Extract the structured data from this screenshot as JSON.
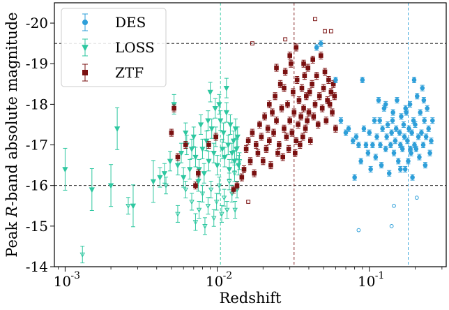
{
  "chart_data": {
    "type": "scatter",
    "xlabel": "Redshift",
    "ylabel": "Peak R-band absolute magnitude",
    "xscale": "log",
    "xlim": [
      0.00085,
      0.32
    ],
    "ylim": [
      -14.0,
      -20.5
    ],
    "y_inverted": true,
    "x_ticks": [
      0.001,
      0.01,
      0.1
    ],
    "x_tick_labels": [
      "10",
      "10",
      "10"
    ],
    "x_tick_exponents": [
      "-3",
      "-2",
      "-1"
    ],
    "y_ticks": [
      -20,
      -19,
      -18,
      -17,
      -16,
      -15,
      -14
    ],
    "y_tick_labels": [
      "-20",
      "-19",
      "-18",
      "-17",
      "-16",
      "-15",
      "-14"
    ],
    "hlines": [
      -19.5,
      -16.0
    ],
    "vlines": [
      {
        "x": 0.0105,
        "series": "LOSS"
      },
      {
        "x": 0.032,
        "series": "ZTF"
      },
      {
        "x": 0.18,
        "series": "DES"
      }
    ],
    "legend_placement": "top-left",
    "series": [
      {
        "name": "DES",
        "color": "#2e9fd9",
        "marker": "circle",
        "points": [
          [
            0.045,
            -19.4
          ],
          [
            0.048,
            -19.5
          ],
          [
            0.06,
            -18.6
          ],
          [
            0.065,
            -17.6
          ],
          [
            0.07,
            -17.3
          ],
          [
            0.073,
            -17.4
          ],
          [
            0.078,
            -17.1
          ],
          [
            0.08,
            -16.2
          ],
          [
            0.082,
            -17.2
          ],
          [
            0.085,
            -17.0
          ],
          [
            0.088,
            -16.6
          ],
          [
            0.09,
            -18.6
          ],
          [
            0.092,
            -17.4
          ],
          [
            0.095,
            -17.0
          ],
          [
            0.098,
            -16.8
          ],
          [
            0.1,
            -17.3
          ],
          [
            0.102,
            -16.4
          ],
          [
            0.105,
            -17.0
          ],
          [
            0.108,
            -17.6
          ],
          [
            0.11,
            -16.7
          ],
          [
            0.112,
            -17.2
          ],
          [
            0.115,
            -18.1
          ],
          [
            0.118,
            -17.0
          ],
          [
            0.12,
            -16.5
          ],
          [
            0.122,
            -17.4
          ],
          [
            0.125,
            -17.9
          ],
          [
            0.128,
            -16.9
          ],
          [
            0.13,
            -17.2
          ],
          [
            0.132,
            -17.5
          ],
          [
            0.135,
            -16.3
          ],
          [
            0.138,
            -17.0
          ],
          [
            0.14,
            -17.3
          ],
          [
            0.142,
            -17.6
          ],
          [
            0.145,
            -16.8
          ],
          [
            0.148,
            -17.1
          ],
          [
            0.15,
            -17.4
          ],
          [
            0.152,
            -18.1
          ],
          [
            0.155,
            -16.6
          ],
          [
            0.158,
            -17.3
          ],
          [
            0.16,
            -17.0
          ],
          [
            0.162,
            -17.7
          ],
          [
            0.165,
            -16.9
          ],
          [
            0.168,
            -17.5
          ],
          [
            0.17,
            -17.2
          ],
          [
            0.172,
            -16.4
          ],
          [
            0.175,
            -17.8
          ],
          [
            0.178,
            -17.1
          ],
          [
            0.18,
            -16.6
          ],
          [
            0.182,
            -17.4
          ],
          [
            0.185,
            -18.0
          ],
          [
            0.188,
            -16.8
          ],
          [
            0.19,
            -17.3
          ],
          [
            0.192,
            -16.2
          ],
          [
            0.195,
            -17.6
          ],
          [
            0.198,
            -17.0
          ],
          [
            0.2,
            -17.5
          ],
          [
            0.203,
            -16.9
          ],
          [
            0.206,
            -18.2
          ],
          [
            0.21,
            -17.2
          ],
          [
            0.213,
            -16.7
          ],
          [
            0.216,
            -17.8
          ],
          [
            0.22,
            -17.3
          ],
          [
            0.223,
            -18.4
          ],
          [
            0.226,
            -17.0
          ],
          [
            0.23,
            -17.6
          ],
          [
            0.233,
            -16.5
          ],
          [
            0.236,
            -17.2
          ],
          [
            0.24,
            -17.9
          ],
          [
            0.245,
            -17.4
          ],
          [
            0.25,
            -16.8
          ],
          [
            0.255,
            -17.1
          ],
          [
            0.26,
            -17.6
          ],
          [
            0.128,
            -18.0
          ],
          [
            0.143,
            -17.8
          ],
          [
            0.16,
            -16.4
          ],
          [
            0.173,
            -17.9
          ],
          [
            0.197,
            -18.6
          ],
          [
            0.228,
            -18.1
          ],
          [
            0.117,
            -17.6
          ],
          [
            0.186,
            -16.9
          ]
        ],
        "upper_limits": [
          [
            0.085,
            -14.9
          ],
          [
            0.14,
            -15.0
          ],
          [
            0.145,
            -15.5
          ],
          [
            0.205,
            -15.7
          ]
        ]
      },
      {
        "name": "LOSS",
        "color": "#2ec7a0",
        "marker": "triangle-down",
        "points": [
          [
            0.001,
            -16.4
          ],
          [
            0.0015,
            -15.9
          ],
          [
            0.002,
            -16.0
          ],
          [
            0.0022,
            -17.4
          ],
          [
            0.0028,
            -15.5
          ],
          [
            0.0038,
            -16.1
          ],
          [
            0.0042,
            -16.2
          ],
          [
            0.0045,
            -16.3
          ],
          [
            0.0049,
            -16.6
          ],
          [
            0.0052,
            -18.0
          ],
          [
            0.0055,
            -16.5
          ],
          [
            0.0058,
            -16.8
          ],
          [
            0.006,
            -16.2
          ],
          [
            0.0063,
            -17.0
          ],
          [
            0.0066,
            -16.4
          ],
          [
            0.007,
            -17.2
          ],
          [
            0.0072,
            -16.7
          ],
          [
            0.0075,
            -16.1
          ],
          [
            0.0078,
            -17.5
          ],
          [
            0.008,
            -16.9
          ],
          [
            0.0082,
            -16.3
          ],
          [
            0.0085,
            -17.1
          ],
          [
            0.0088,
            -16.6
          ],
          [
            0.009,
            -18.3
          ],
          [
            0.0092,
            -17.4
          ],
          [
            0.0095,
            -16.8
          ],
          [
            0.0098,
            -17.2
          ],
          [
            0.01,
            -16.5
          ],
          [
            0.0103,
            -18.0
          ],
          [
            0.0105,
            -17.6
          ],
          [
            0.0108,
            -16.9
          ],
          [
            0.011,
            -17.3
          ],
          [
            0.0112,
            -16.7
          ],
          [
            0.0115,
            -17.8
          ],
          [
            0.0118,
            -17.0
          ],
          [
            0.012,
            -16.4
          ],
          [
            0.0122,
            -17.5
          ],
          [
            0.0125,
            -16.8
          ],
          [
            0.0128,
            -17.1
          ],
          [
            0.013,
            -16.6
          ],
          [
            0.0132,
            -17.4
          ],
          [
            0.0134,
            -16.9
          ],
          [
            0.0136,
            -17.2
          ],
          [
            0.0138,
            -16.5
          ],
          [
            0.0115,
            -18.4
          ],
          [
            0.0097,
            -17.9
          ],
          [
            0.0087,
            -17.6
          ],
          [
            0.0076,
            -16.4
          ],
          [
            0.0068,
            -16.9
          ],
          [
            0.0062,
            -17.3
          ]
        ],
        "upper_limits": [
          [
            0.0013,
            -14.3
          ],
          [
            0.0026,
            -15.5
          ],
          [
            0.0046,
            -16.0
          ],
          [
            0.0055,
            -15.3
          ],
          [
            0.0062,
            -15.9
          ],
          [
            0.0068,
            -15.6
          ],
          [
            0.0072,
            -15.1
          ],
          [
            0.0076,
            -15.4
          ],
          [
            0.008,
            -15.8
          ],
          [
            0.0083,
            -15.0
          ],
          [
            0.0087,
            -15.5
          ],
          [
            0.0091,
            -15.9
          ],
          [
            0.0095,
            -15.2
          ],
          [
            0.0099,
            -15.6
          ],
          [
            0.0103,
            -16.0
          ],
          [
            0.0107,
            -15.3
          ],
          [
            0.0111,
            -15.7
          ],
          [
            0.0116,
            -15.4
          ],
          [
            0.012,
            -16.1
          ],
          [
            0.0125,
            -15.8
          ],
          [
            0.013,
            -16.3
          ],
          [
            0.0135,
            -15.9
          ],
          [
            0.014,
            -16.6
          ],
          [
            0.0131,
            -15.4
          ]
        ]
      },
      {
        "name": "ZTF",
        "color": "#7a1010",
        "marker": "square",
        "points": [
          [
            0.005,
            -17.3
          ],
          [
            0.0052,
            -17.9
          ],
          [
            0.0055,
            -16.7
          ],
          [
            0.0062,
            -17.0
          ],
          [
            0.0072,
            -16.0
          ],
          [
            0.0075,
            -16.3
          ],
          [
            0.0088,
            -17.0
          ],
          [
            0.0098,
            -17.2
          ],
          [
            0.0128,
            -15.9
          ],
          [
            0.0135,
            -16.0
          ],
          [
            0.0145,
            -16.2
          ],
          [
            0.015,
            -16.4
          ],
          [
            0.0155,
            -16.9
          ],
          [
            0.016,
            -17.1
          ],
          [
            0.0165,
            -16.6
          ],
          [
            0.017,
            -17.3
          ],
          [
            0.0175,
            -16.3
          ],
          [
            0.018,
            -17.0
          ],
          [
            0.0185,
            -16.8
          ],
          [
            0.019,
            -17.5
          ],
          [
            0.0195,
            -17.2
          ],
          [
            0.02,
            -16.6
          ],
          [
            0.0205,
            -17.7
          ],
          [
            0.021,
            -16.9
          ],
          [
            0.0215,
            -17.4
          ],
          [
            0.022,
            -17.1
          ],
          [
            0.0225,
            -16.5
          ],
          [
            0.023,
            -17.8
          ],
          [
            0.0235,
            -17.3
          ],
          [
            0.024,
            -18.2
          ],
          [
            0.0245,
            -17.6
          ],
          [
            0.025,
            -16.8
          ],
          [
            0.0255,
            -17.0
          ],
          [
            0.026,
            -18.5
          ],
          [
            0.0265,
            -17.9
          ],
          [
            0.027,
            -16.7
          ],
          [
            0.0275,
            -17.4
          ],
          [
            0.028,
            -18.8
          ],
          [
            0.0285,
            -17.2
          ],
          [
            0.029,
            -18.0
          ],
          [
            0.0295,
            -16.9
          ],
          [
            0.03,
            -17.6
          ],
          [
            0.0305,
            -19.0
          ],
          [
            0.031,
            -17.3
          ],
          [
            0.0315,
            -18.3
          ],
          [
            0.032,
            -17.8
          ],
          [
            0.0325,
            -16.8
          ],
          [
            0.033,
            -17.1
          ],
          [
            0.0335,
            -18.6
          ],
          [
            0.034,
            -17.5
          ],
          [
            0.0345,
            -18.1
          ],
          [
            0.035,
            -17.0
          ],
          [
            0.0355,
            -17.7
          ],
          [
            0.036,
            -18.4
          ],
          [
            0.0365,
            -17.2
          ],
          [
            0.037,
            -17.9
          ],
          [
            0.0375,
            -18.7
          ],
          [
            0.038,
            -17.4
          ],
          [
            0.0385,
            -18.2
          ],
          [
            0.039,
            -17.6
          ],
          [
            0.0395,
            -18.9
          ],
          [
            0.04,
            -17.8
          ],
          [
            0.0405,
            -18.3
          ],
          [
            0.041,
            -17.1
          ],
          [
            0.042,
            -18.5
          ],
          [
            0.043,
            -17.7
          ],
          [
            0.044,
            -18.0
          ],
          [
            0.045,
            -18.7
          ],
          [
            0.046,
            -17.5
          ],
          [
            0.047,
            -18.2
          ],
          [
            0.048,
            -19.2
          ],
          [
            0.049,
            -17.9
          ],
          [
            0.05,
            -18.4
          ],
          [
            0.051,
            -18.8
          ],
          [
            0.052,
            -17.6
          ],
          [
            0.053,
            -18.1
          ],
          [
            0.054,
            -18.6
          ],
          [
            0.055,
            -18.0
          ],
          [
            0.056,
            -18.3
          ],
          [
            0.057,
            -17.8
          ],
          [
            0.058,
            -18.5
          ],
          [
            0.059,
            -18.2
          ],
          [
            0.06,
            -17.4
          ],
          [
            0.033,
            -19.4
          ],
          [
            0.03,
            -19.2
          ],
          [
            0.037,
            -19.0
          ],
          [
            0.0425,
            -19.1
          ],
          [
            0.0275,
            -18.4
          ],
          [
            0.0245,
            -18.9
          ],
          [
            0.022,
            -18.0
          ]
        ],
        "upper_limits": [
          [
            0.017,
            -19.5
          ],
          [
            0.016,
            -15.6
          ],
          [
            0.028,
            -19.6
          ],
          [
            0.044,
            -20.1
          ],
          [
            0.051,
            -19.8
          ],
          [
            0.056,
            -19.8
          ]
        ]
      }
    ]
  }
}
